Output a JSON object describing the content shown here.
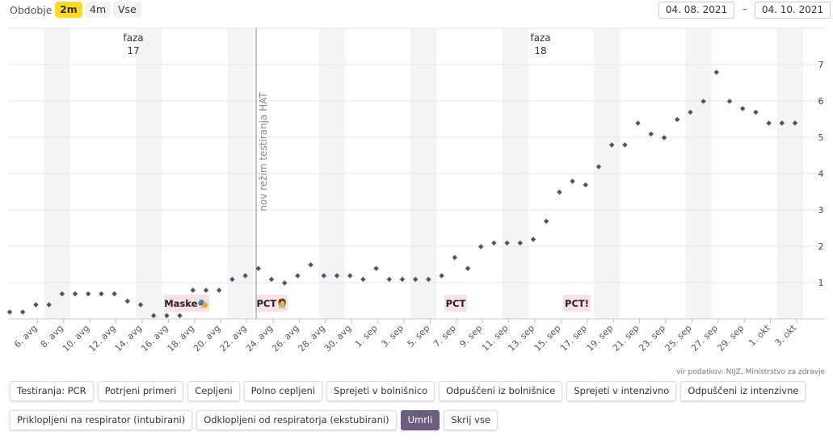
{
  "header": {
    "period_label": "Obdobje",
    "period_buttons": [
      {
        "label": "2m",
        "active": true
      },
      {
        "label": "4m",
        "active": false
      },
      {
        "label": "Vse",
        "active": false
      }
    ],
    "date_from": "04. 08. 2021",
    "date_separator": "–",
    "date_to": "04. 10. 2021"
  },
  "chart_data": {
    "type": "scatter",
    "x_tick_labels": [
      "6. avg",
      "8. avg",
      "10. avg",
      "12. avg",
      "14. avg",
      "16. avg",
      "18. avg",
      "20. avg",
      "22. avg",
      "24. avg",
      "26. avg",
      "28. avg",
      "30. avg",
      "1. sep",
      "3. sep",
      "5. sep",
      "7. sep",
      "9. sep",
      "11. sep",
      "13. sep",
      "15. sep",
      "17. sep",
      "19. sep",
      "21. sep",
      "23. sep",
      "25. sep",
      "27. sep",
      "29. sep",
      "1. okt",
      "3. okt"
    ],
    "y_tick_labels": [
      "1",
      "2",
      "3",
      "4",
      "5",
      "6",
      "7"
    ],
    "ylim": [
      0,
      7.7
    ],
    "series": [
      {
        "name": "Umrli",
        "color": "#5b4c6b",
        "values": [
          0.1,
          0.1,
          0.3,
          0.3,
          0.6,
          0.6,
          0.6,
          0.6,
          0.6,
          0.4,
          0.3,
          0.0,
          0.0,
          0.0,
          0.7,
          0.7,
          0.7,
          1.0,
          1.1,
          1.3,
          1.0,
          0.9,
          1.1,
          1.4,
          1.1,
          1.1,
          1.1,
          1.0,
          1.3,
          1.0,
          1.0,
          1.0,
          1.0,
          1.1,
          1.6,
          1.3,
          1.9,
          2.0,
          2.0,
          2.0,
          2.1,
          2.6,
          3.4,
          3.7,
          3.6,
          4.1,
          4.7,
          4.7,
          5.3,
          5.0,
          4.9,
          5.4,
          5.6,
          5.9,
          6.7,
          5.9,
          5.7,
          5.6,
          5.3,
          5.3,
          5.3
        ]
      }
    ],
    "phases": [
      {
        "label_1": "faza",
        "label_2": "17"
      },
      {
        "label_1": "faza",
        "label_2": "18"
      }
    ],
    "vertical_marker": {
      "label": "nov režim testiranja HAT"
    },
    "event_labels": [
      "Maske🎭",
      "PCT🧑‍⚕",
      "PCT",
      "PCT!"
    ],
    "weekend_shading": true,
    "grid": true
  },
  "source_text": "vir podatkov: NIJZ, Ministrstvo za zdravje",
  "series_buttons": {
    "row1": [
      {
        "label": "Testiranja: PCR",
        "active": false
      },
      {
        "label": "Potrjeni primeri",
        "active": false
      },
      {
        "label": "Cepljeni",
        "active": false
      },
      {
        "label": "Polno cepljeni",
        "active": false
      },
      {
        "label": "Sprejeti v bolnišnico",
        "active": false
      },
      {
        "label": "Odpuščeni iz bolnišnice",
        "active": false
      },
      {
        "label": "Sprejeti v intenzivno",
        "active": false
      },
      {
        "label": "Odpuščeni iz intenzivne",
        "active": false
      }
    ],
    "row2": [
      {
        "label": "Priklopljeni na respirator (intubirani)",
        "active": false
      },
      {
        "label": "Odklopljeni od respiratorja (ekstubirani)",
        "active": false
      },
      {
        "label": "Umrli",
        "active": true
      },
      {
        "label": "Skrij vse",
        "active": false
      }
    ]
  }
}
